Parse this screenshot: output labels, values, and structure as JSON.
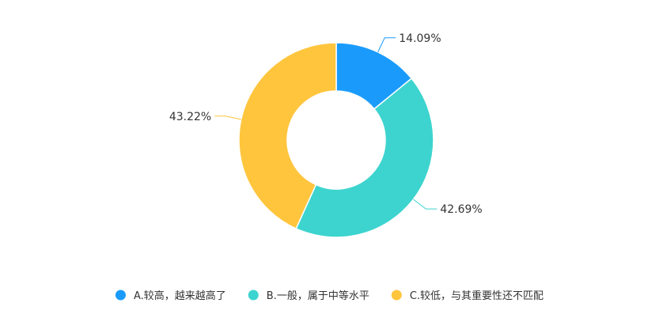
{
  "chart_data": {
    "type": "pie",
    "variant": "donut",
    "title": "",
    "legend_position": "bottom-center",
    "slices": [
      {
        "name": "A.较高，越来越高了",
        "value": 14.09,
        "label": "14.09%",
        "color": "#1a9bfc"
      },
      {
        "name": "B.一般，属于中等水平",
        "value": 42.69,
        "label": "42.69%",
        "color": "#3dd4cf"
      },
      {
        "name": "C.较低，与其重要性还不匹配",
        "value": 43.22,
        "label": "43.22%",
        "color": "#ffc53d"
      }
    ]
  }
}
